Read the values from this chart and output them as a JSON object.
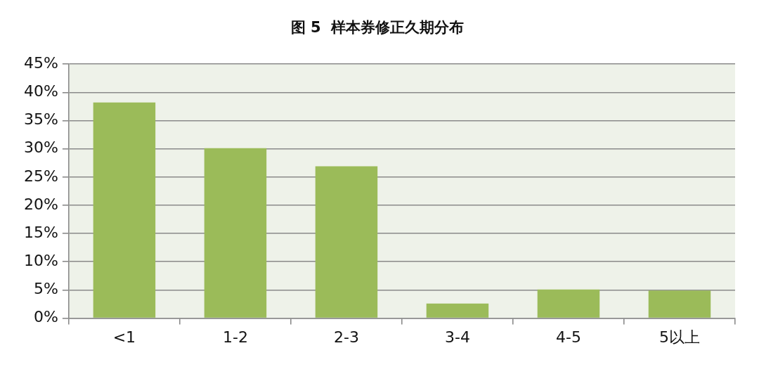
{
  "chart_data": {
    "type": "bar",
    "title": "图 5  样本券修正久期分布",
    "categories": [
      "<1",
      "1-2",
      "2-3",
      "3-4",
      "4-5",
      "5以上"
    ],
    "values": [
      38.2,
      30.1,
      26.9,
      2.6,
      5.1,
      4.9
    ],
    "color": "#9bbb59",
    "ylim": [
      0,
      45
    ],
    "yticks": [
      {
        "value": 0,
        "label": "0%"
      },
      {
        "value": 5,
        "label": "5%"
      },
      {
        "value": 10,
        "label": "10%"
      },
      {
        "value": 15,
        "label": "15%"
      },
      {
        "value": 20,
        "label": "20%"
      },
      {
        "value": 25,
        "label": "25%"
      },
      {
        "value": 30,
        "label": "30%"
      },
      {
        "value": 35,
        "label": "35%"
      },
      {
        "value": 40,
        "label": "40%"
      },
      {
        "value": 45,
        "label": "45%"
      }
    ],
    "grid": "y"
  }
}
